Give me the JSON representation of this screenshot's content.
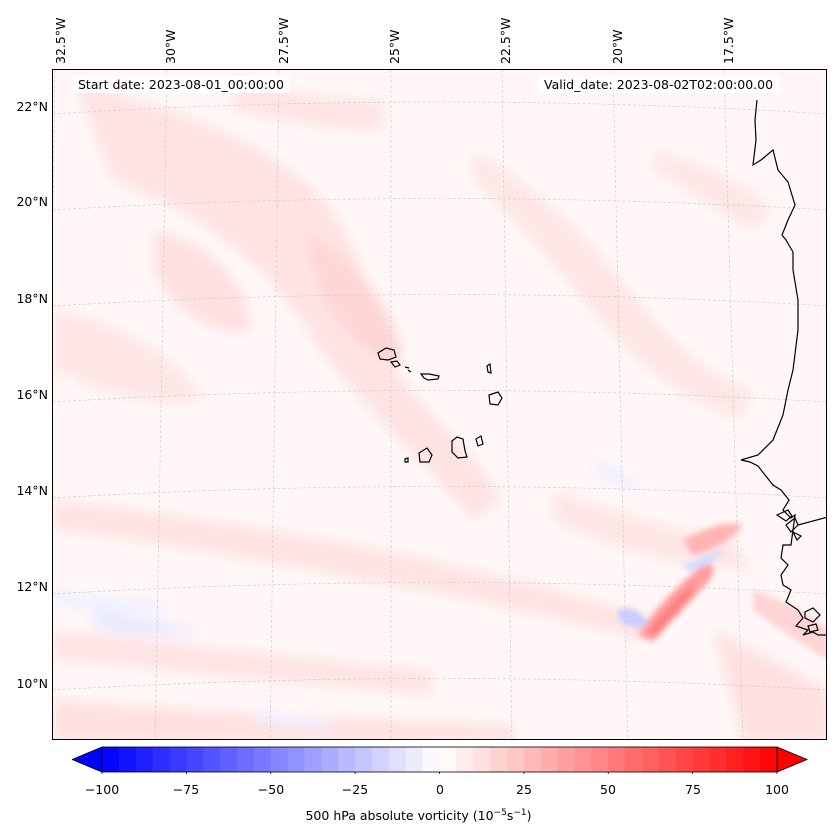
{
  "map": {
    "lon_labels": [
      "32.5°W",
      "30°W",
      "27.5°W",
      "25°W",
      "22.5°W",
      "20°W",
      "17.5°W"
    ],
    "lat_labels": [
      "22°N",
      "20°N",
      "18°N",
      "16°N",
      "14°N",
      "12°N",
      "10°N"
    ],
    "start_date": "Start date: 2023-08-01_00:00:00",
    "valid_date": "Valid_date: 2023-08-02T02:00:00.00",
    "coastline_color": "#000000",
    "gridline_color": "#bbbbbb"
  },
  "colorbar": {
    "ticks": [
      "−100",
      "−75",
      "−50",
      "−25",
      "0",
      "25",
      "50",
      "75",
      "100"
    ],
    "label_prefix": "500 hPa absolute vorticity (10",
    "label_exp1": "−5",
    "label_mid": "s",
    "label_exp2": "−1",
    "label_suffix": ")",
    "min_color": "#0000ff",
    "mid_color": "#ffffff",
    "max_color": "#ff0000",
    "extend": "both"
  }
}
